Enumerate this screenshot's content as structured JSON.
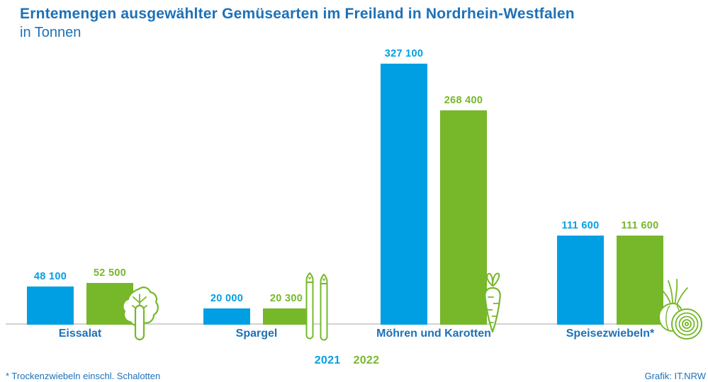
{
  "title": "Erntemengen ausgewählter Gemüsearten im Freiland in Nordrhein-Westfalen",
  "subtitle": "in Tonnen",
  "footnote": "* Trockenzwiebeln einschl. Schalotten",
  "credit": "Grafik: IT.NRW",
  "colors": {
    "bar_2021": "#009fe3",
    "bar_2022": "#76b82a",
    "heading_blue": "#1d71b8",
    "axis_gray": "#d2d2d2",
    "icon_green": "#76b82a"
  },
  "legend": [
    {
      "label": "2021",
      "color": "#009fe3"
    },
    {
      "label": "2022",
      "color": "#76b82a"
    }
  ],
  "chart_data": {
    "type": "bar",
    "title": "Erntemengen ausgewählter Gemüsearten im Freiland in Nordrhein-Westfalen",
    "subtitle": "in Tonnen",
    "ylabel": "Tonnen",
    "ylim": [
      0,
      340000
    ],
    "grid": false,
    "y_axis_shown": false,
    "legend_position": "bottom",
    "categories": [
      "Eissalat",
      "Spargel",
      "Möhren und Karotten",
      "Speisezwiebeln*"
    ],
    "series": [
      {
        "name": "2021",
        "color": "#009fe3",
        "values": [
          48100,
          20000,
          327100,
          111600
        ]
      },
      {
        "name": "2022",
        "color": "#76b82a",
        "values": [
          52500,
          20300,
          268400,
          111600
        ]
      }
    ],
    "value_label_format": "thousands separated by space",
    "icons": [
      "lettuce",
      "asparagus",
      "carrot",
      "onion"
    ]
  }
}
